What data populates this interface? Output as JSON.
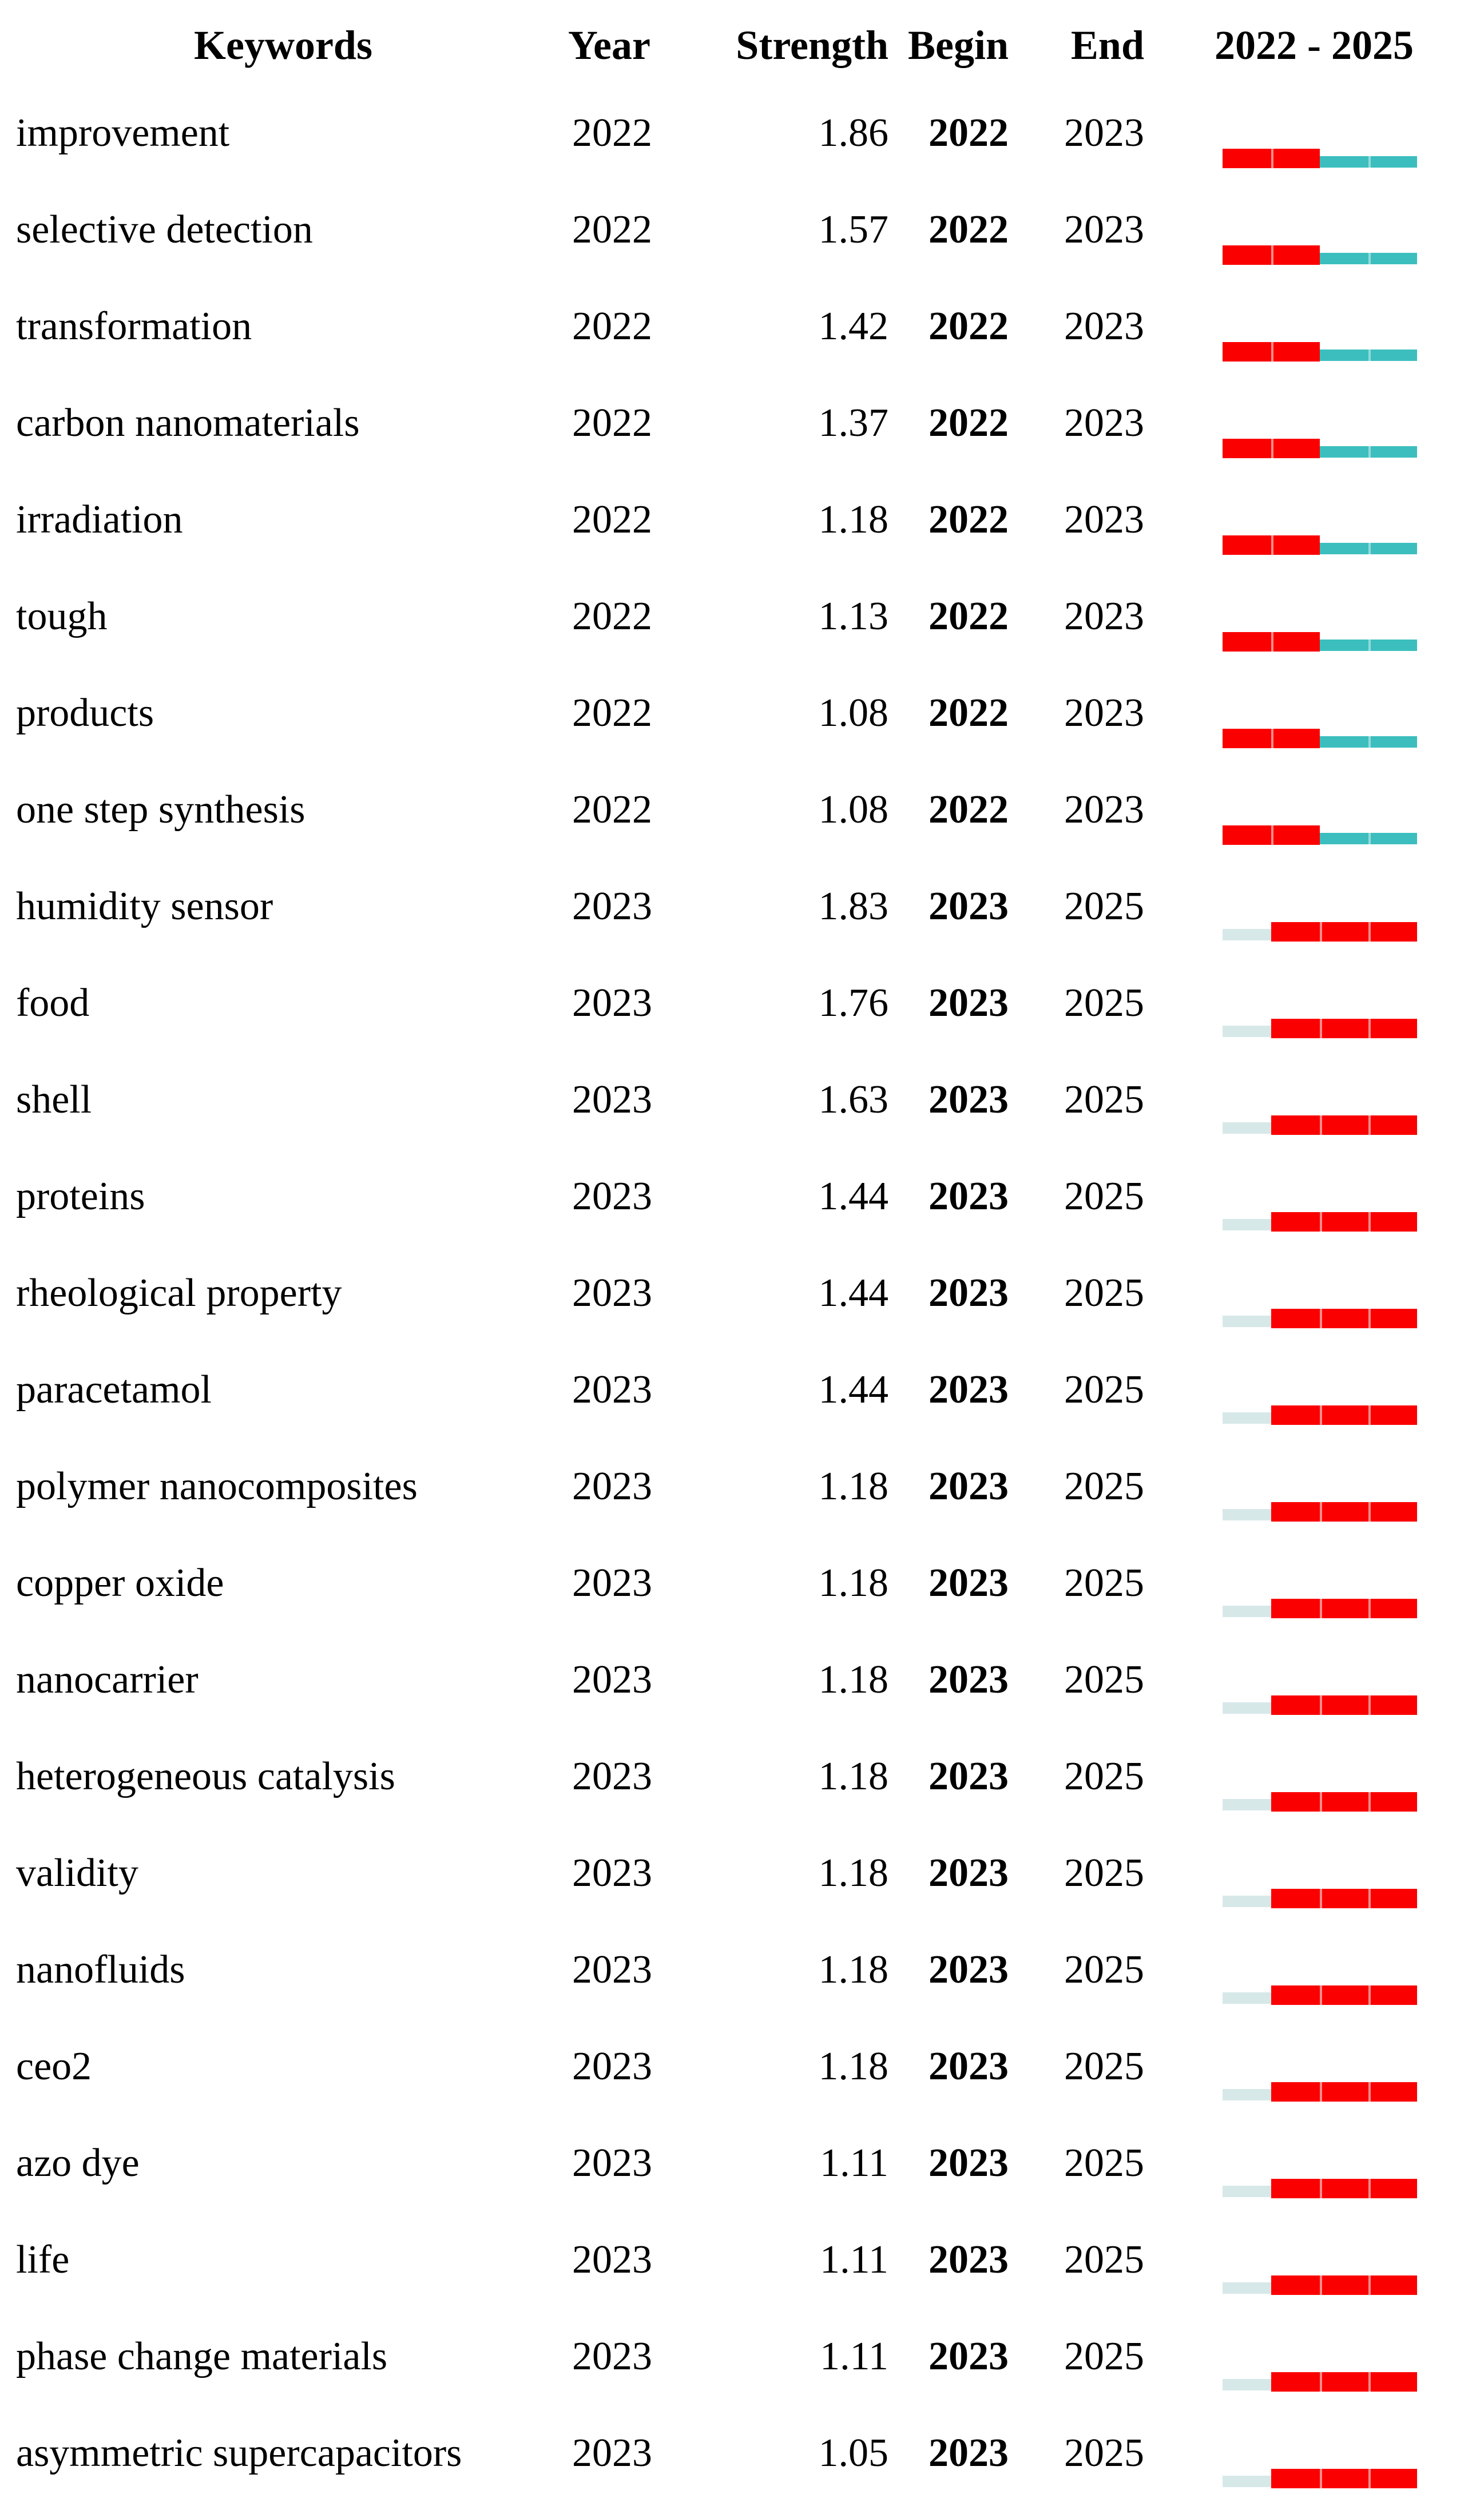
{
  "header": {
    "keywords": "Keywords",
    "year": "Year",
    "strength": "Strength",
    "begin": "Begin",
    "end": "End",
    "period_label": "2022 - 2025"
  },
  "colors": {
    "burst": "#fa0000",
    "after_burst": "#3cbebe",
    "before_burst": "#d7e8e9",
    "text": "#000000"
  },
  "chart_data": {
    "type": "table",
    "columns": [
      "Keywords",
      "Year",
      "Strength",
      "Begin",
      "End",
      "2022 - 2025"
    ],
    "period": {
      "start": 2022,
      "end": 2025
    },
    "legend": {
      "burst_segment_color": "#fa0000",
      "outside_burst_after_color": "#3cbebe",
      "outside_burst_before_color": "#d7e8e9"
    },
    "rows": [
      {
        "keyword": "improvement",
        "year": 2022,
        "strength": 1.86,
        "begin": 2022,
        "end": 2023
      },
      {
        "keyword": "selective detection",
        "year": 2022,
        "strength": 1.57,
        "begin": 2022,
        "end": 2023
      },
      {
        "keyword": "transformation",
        "year": 2022,
        "strength": 1.42,
        "begin": 2022,
        "end": 2023
      },
      {
        "keyword": "carbon nanomaterials",
        "year": 2022,
        "strength": 1.37,
        "begin": 2022,
        "end": 2023
      },
      {
        "keyword": "irradiation",
        "year": 2022,
        "strength": 1.18,
        "begin": 2022,
        "end": 2023
      },
      {
        "keyword": "tough",
        "year": 2022,
        "strength": 1.13,
        "begin": 2022,
        "end": 2023
      },
      {
        "keyword": "products",
        "year": 2022,
        "strength": 1.08,
        "begin": 2022,
        "end": 2023
      },
      {
        "keyword": "one step synthesis",
        "year": 2022,
        "strength": 1.08,
        "begin": 2022,
        "end": 2023
      },
      {
        "keyword": "humidity sensor",
        "year": 2023,
        "strength": 1.83,
        "begin": 2023,
        "end": 2025
      },
      {
        "keyword": "food",
        "year": 2023,
        "strength": 1.76,
        "begin": 2023,
        "end": 2025
      },
      {
        "keyword": "shell",
        "year": 2023,
        "strength": 1.63,
        "begin": 2023,
        "end": 2025
      },
      {
        "keyword": "proteins",
        "year": 2023,
        "strength": 1.44,
        "begin": 2023,
        "end": 2025
      },
      {
        "keyword": "rheological property",
        "year": 2023,
        "strength": 1.44,
        "begin": 2023,
        "end": 2025
      },
      {
        "keyword": "paracetamol",
        "year": 2023,
        "strength": 1.44,
        "begin": 2023,
        "end": 2025
      },
      {
        "keyword": "polymer nanocomposites",
        "year": 2023,
        "strength": 1.18,
        "begin": 2023,
        "end": 2025
      },
      {
        "keyword": "copper oxide",
        "year": 2023,
        "strength": 1.18,
        "begin": 2023,
        "end": 2025
      },
      {
        "keyword": "nanocarrier",
        "year": 2023,
        "strength": 1.18,
        "begin": 2023,
        "end": 2025
      },
      {
        "keyword": "heterogeneous catalysis",
        "year": 2023,
        "strength": 1.18,
        "begin": 2023,
        "end": 2025
      },
      {
        "keyword": "validity",
        "year": 2023,
        "strength": 1.18,
        "begin": 2023,
        "end": 2025
      },
      {
        "keyword": "nanofluids",
        "year": 2023,
        "strength": 1.18,
        "begin": 2023,
        "end": 2025
      },
      {
        "keyword": "ceo2",
        "year": 2023,
        "strength": 1.18,
        "begin": 2023,
        "end": 2025
      },
      {
        "keyword": "azo dye",
        "year": 2023,
        "strength": 1.11,
        "begin": 2023,
        "end": 2025
      },
      {
        "keyword": "life",
        "year": 2023,
        "strength": 1.11,
        "begin": 2023,
        "end": 2025
      },
      {
        "keyword": "phase change materials",
        "year": 2023,
        "strength": 1.11,
        "begin": 2023,
        "end": 2025
      },
      {
        "keyword": "asymmetric supercapacitors",
        "year": 2023,
        "strength": 1.05,
        "begin": 2023,
        "end": 2025
      }
    ]
  }
}
